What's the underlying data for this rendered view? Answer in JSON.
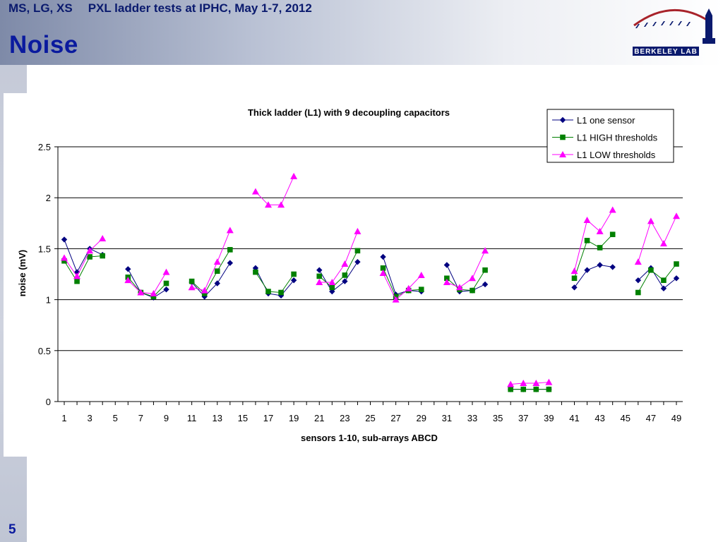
{
  "header": {
    "authors": "MS, LG, XS",
    "subtitle": "PXL ladder tests at IPHC, May 1-7, 2012"
  },
  "slide": {
    "title": "Noise",
    "page_number": "5"
  },
  "logo": {
    "label": "Berkeley Lab",
    "icon": "berkeley-lab-logo",
    "brand_color": "#0a1a6e",
    "accent_color": "#a8232a"
  },
  "colors": {
    "series_one_sensor": "#000080",
    "series_high": "#008000",
    "series_low": "#ff00ff",
    "title_blue": "#0a1a9e"
  },
  "chart_data": {
    "type": "line",
    "title": "Thick ladder (L1) with 9 decoupling capacitors",
    "xlabel": "sensors 1-10, sub-arrays ABCD",
    "ylabel": "noise (mV)",
    "xlim": [
      1,
      49
    ],
    "ylim": [
      0,
      2.5
    ],
    "y_ticks": [
      "0",
      "0.5",
      "1",
      "1.5",
      "2",
      "2.5"
    ],
    "x_ticks": [
      "1",
      "3",
      "5",
      "7",
      "9",
      "11",
      "13",
      "15",
      "17",
      "19",
      "21",
      "23",
      "25",
      "27",
      "29",
      "31",
      "33",
      "35",
      "37",
      "39",
      "41",
      "43",
      "45",
      "47",
      "49"
    ],
    "grid": "horizontal",
    "legend_position": "top-right",
    "series": [
      {
        "name": "L1 one sensor",
        "marker": "diamond",
        "color": "#000080",
        "values": [
          1.59,
          1.27,
          1.5,
          1.44,
          null,
          1.3,
          1.07,
          1.02,
          1.1,
          null,
          1.17,
          1.03,
          1.16,
          1.36,
          null,
          1.31,
          1.06,
          1.04,
          1.19,
          null,
          1.29,
          1.08,
          1.18,
          1.37,
          null,
          1.42,
          1.05,
          1.09,
          1.08,
          null,
          1.34,
          1.08,
          1.09,
          1.15,
          null,
          0.12,
          0.12,
          0.12,
          0.12,
          null,
          1.12,
          1.29,
          1.34,
          1.32,
          null,
          1.19,
          1.31,
          1.11,
          1.21
        ]
      },
      {
        "name": "L1 HIGH thresholds",
        "marker": "square",
        "color": "#008000",
        "values": [
          1.38,
          1.18,
          1.42,
          1.43,
          null,
          1.22,
          1.07,
          1.03,
          1.16,
          null,
          1.18,
          1.06,
          1.28,
          1.49,
          null,
          1.27,
          1.08,
          1.07,
          1.25,
          null,
          1.23,
          1.12,
          1.24,
          1.48,
          null,
          1.31,
          1.03,
          1.09,
          1.1,
          null,
          1.21,
          1.1,
          1.09,
          1.29,
          null,
          0.12,
          0.12,
          0.12,
          0.12,
          null,
          1.21,
          1.58,
          1.51,
          1.64,
          null,
          1.07,
          1.29,
          1.19,
          1.35
        ]
      },
      {
        "name": "L1 LOW thresholds",
        "marker": "triangle",
        "color": "#ff00ff",
        "values": [
          1.41,
          1.23,
          1.48,
          1.6,
          null,
          1.19,
          1.07,
          1.06,
          1.27,
          null,
          1.12,
          1.09,
          1.37,
          1.68,
          null,
          2.06,
          1.93,
          1.93,
          2.21,
          null,
          1.17,
          1.17,
          1.35,
          1.67,
          null,
          1.26,
          1.0,
          1.11,
          1.24,
          null,
          1.17,
          1.12,
          1.21,
          1.48,
          null,
          0.17,
          0.18,
          0.18,
          0.19,
          null,
          1.28,
          1.78,
          1.67,
          1.88,
          null,
          1.37,
          1.77,
          1.55,
          1.82
        ]
      }
    ]
  }
}
